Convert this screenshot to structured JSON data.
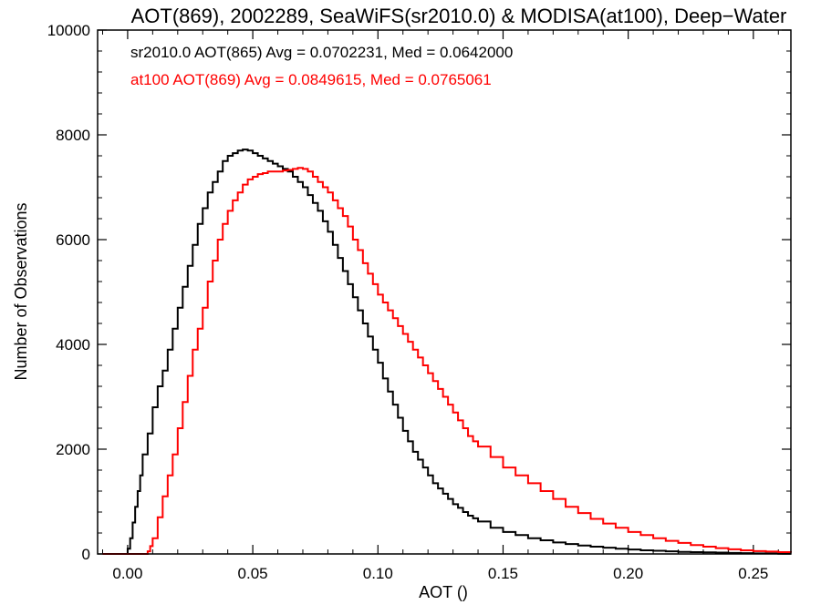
{
  "chart_data": {
    "type": "line",
    "step": true,
    "title": "AOT(869), 2002289, SeaWiFS(sr2010.0) & MODISA(at100), Deep−Water",
    "xlabel": "AOT ()",
    "ylabel": "Number of Observations",
    "xlim": [
      -0.012,
      0.265
    ],
    "ylim": [
      0,
      10000
    ],
    "x_ticks": [
      0.0,
      0.05,
      0.1,
      0.15,
      0.2,
      0.25
    ],
    "x_tick_labels": [
      "0.00",
      "0.05",
      "0.10",
      "0.15",
      "0.20",
      "0.25"
    ],
    "y_ticks": [
      0,
      2000,
      4000,
      6000,
      8000,
      10000
    ],
    "y_tick_labels": [
      "0",
      "2000",
      "4000",
      "6000",
      "8000",
      "10000"
    ],
    "grid": false,
    "annotations": [
      {
        "text": "sr2010.0 AOT(865) Avg = 0.0702231, Med = 0.0642000",
        "color": "#000000"
      },
      {
        "text": "at100 AOT(869) Avg = 0.0849615, Med = 0.0765061",
        "color": "#ff0000"
      }
    ],
    "series": [
      {
        "color": "#000000",
        "x": [
          -0.01,
          -0.001,
          0.0,
          0.001,
          0.002,
          0.003,
          0.004,
          0.005,
          0.006,
          0.008,
          0.01,
          0.012,
          0.014,
          0.016,
          0.018,
          0.02,
          0.022,
          0.024,
          0.026,
          0.028,
          0.03,
          0.032,
          0.034,
          0.036,
          0.038,
          0.04,
          0.042,
          0.044,
          0.046,
          0.048,
          0.05,
          0.052,
          0.054,
          0.056,
          0.058,
          0.06,
          0.062,
          0.064,
          0.066,
          0.068,
          0.07,
          0.072,
          0.074,
          0.076,
          0.078,
          0.08,
          0.082,
          0.084,
          0.086,
          0.088,
          0.09,
          0.092,
          0.094,
          0.096,
          0.098,
          0.1,
          0.102,
          0.104,
          0.106,
          0.108,
          0.11,
          0.112,
          0.114,
          0.116,
          0.118,
          0.12,
          0.122,
          0.124,
          0.126,
          0.128,
          0.13,
          0.132,
          0.134,
          0.136,
          0.138,
          0.14,
          0.145,
          0.15,
          0.155,
          0.16,
          0.165,
          0.17,
          0.175,
          0.18,
          0.185,
          0.19,
          0.195,
          0.2,
          0.205,
          0.21,
          0.215,
          0.22,
          0.225,
          0.23,
          0.235,
          0.24,
          0.245,
          0.25,
          0.255,
          0.26,
          0.265
        ],
        "y": [
          0,
          0,
          100,
          300,
          600,
          900,
          1200,
          1500,
          1900,
          2300,
          2800,
          3200,
          3500,
          3900,
          4300,
          4700,
          5100,
          5500,
          5900,
          6300,
          6600,
          6900,
          7100,
          7300,
          7500,
          7600,
          7650,
          7700,
          7720,
          7700,
          7650,
          7600,
          7550,
          7500,
          7450,
          7400,
          7350,
          7300,
          7200,
          7100,
          7000,
          6850,
          6700,
          6550,
          6350,
          6150,
          5900,
          5650,
          5400,
          5150,
          4900,
          4650,
          4400,
          4150,
          3900,
          3650,
          3350,
          3100,
          2850,
          2600,
          2350,
          2150,
          1950,
          1800,
          1650,
          1500,
          1350,
          1250,
          1150,
          1050,
          950,
          880,
          800,
          730,
          680,
          620,
          500,
          420,
          360,
          300,
          260,
          220,
          190,
          160,
          140,
          120,
          100,
          85,
          70,
          60,
          50,
          40,
          35,
          30,
          25,
          20,
          15,
          10,
          8,
          5,
          5
        ]
      },
      {
        "color": "#ff0000",
        "x": [
          -0.01,
          0.0,
          0.002,
          0.004,
          0.006,
          0.008,
          0.009,
          0.01,
          0.012,
          0.014,
          0.016,
          0.018,
          0.02,
          0.022,
          0.024,
          0.026,
          0.028,
          0.03,
          0.032,
          0.034,
          0.036,
          0.038,
          0.04,
          0.042,
          0.044,
          0.046,
          0.048,
          0.05,
          0.052,
          0.054,
          0.056,
          0.058,
          0.06,
          0.062,
          0.064,
          0.066,
          0.068,
          0.07,
          0.072,
          0.074,
          0.076,
          0.078,
          0.08,
          0.082,
          0.084,
          0.086,
          0.088,
          0.09,
          0.092,
          0.094,
          0.096,
          0.098,
          0.1,
          0.102,
          0.104,
          0.106,
          0.108,
          0.11,
          0.112,
          0.114,
          0.116,
          0.118,
          0.12,
          0.122,
          0.124,
          0.126,
          0.128,
          0.13,
          0.132,
          0.134,
          0.136,
          0.138,
          0.14,
          0.145,
          0.15,
          0.155,
          0.16,
          0.165,
          0.17,
          0.175,
          0.18,
          0.185,
          0.19,
          0.195,
          0.2,
          0.205,
          0.21,
          0.215,
          0.22,
          0.225,
          0.23,
          0.235,
          0.24,
          0.245,
          0.25,
          0.255,
          0.26,
          0.265
        ],
        "y": [
          0,
          0,
          0,
          0,
          0,
          50,
          150,
          300,
          700,
          1100,
          1500,
          1900,
          2400,
          2900,
          3400,
          3900,
          4300,
          4700,
          5200,
          5600,
          6000,
          6300,
          6550,
          6750,
          6900,
          7050,
          7150,
          7200,
          7250,
          7270,
          7300,
          7300,
          7300,
          7320,
          7330,
          7350,
          7370,
          7350,
          7300,
          7200,
          7100,
          7000,
          6900,
          6750,
          6600,
          6450,
          6250,
          6000,
          5800,
          5550,
          5350,
          5150,
          4950,
          4800,
          4650,
          4500,
          4350,
          4200,
          4050,
          3900,
          3750,
          3600,
          3450,
          3300,
          3150,
          3000,
          2850,
          2700,
          2550,
          2400,
          2250,
          2150,
          2050,
          1850,
          1650,
          1500,
          1350,
          1200,
          1050,
          900,
          780,
          670,
          580,
          500,
          420,
          360,
          300,
          250,
          210,
          170,
          140,
          110,
          90,
          70,
          55,
          45,
          35,
          25
        ]
      }
    ]
  }
}
